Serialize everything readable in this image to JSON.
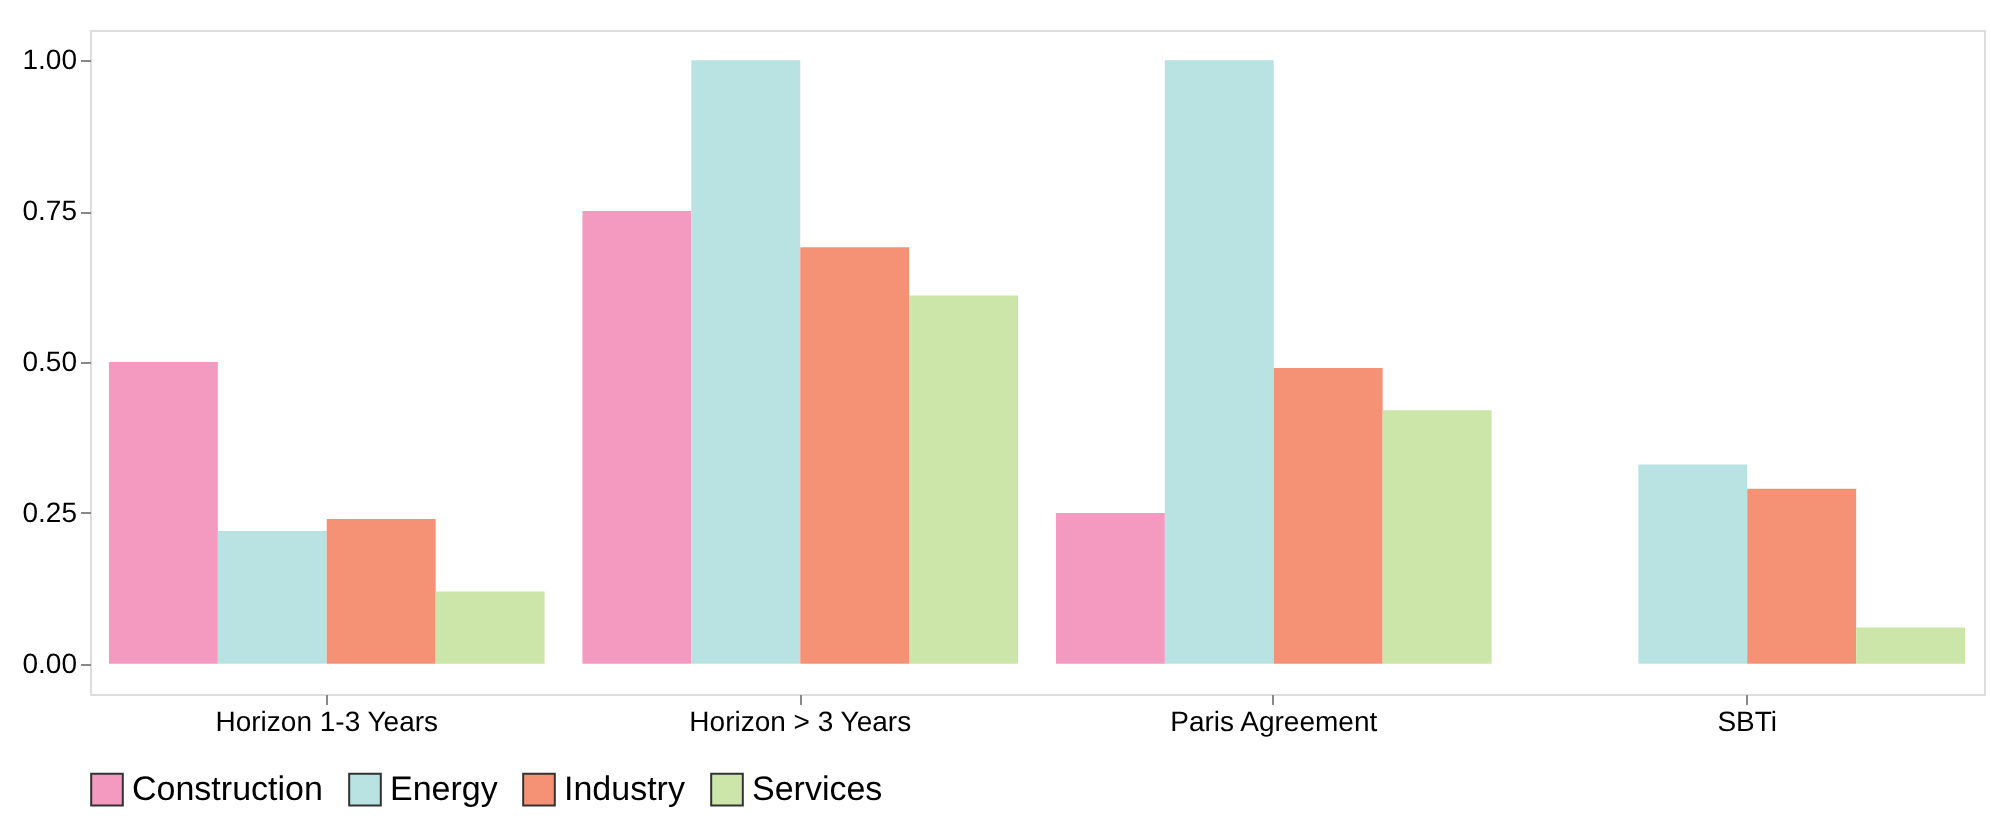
{
  "chart_data": {
    "type": "bar",
    "categories": [
      "Horizon 1-3 Years",
      "Horizon > 3 Years",
      "Paris Agreement",
      "SBTi"
    ],
    "series": [
      {
        "name": "Construction",
        "color": "#f49ac1",
        "values": [
          0.5,
          0.75,
          0.25,
          0.0
        ]
      },
      {
        "name": "Energy",
        "color": "#b9e2e2",
        "values": [
          0.22,
          1.0,
          1.0,
          0.33
        ]
      },
      {
        "name": "Industry",
        "color": "#f59275",
        "values": [
          0.24,
          0.69,
          0.49,
          0.29
        ]
      },
      {
        "name": "Services",
        "color": "#cce5a8",
        "values": [
          0.12,
          0.61,
          0.42,
          0.06
        ]
      }
    ],
    "ylim": [
      -0.05,
      1.05
    ],
    "yticks": [
      {
        "value": 0,
        "label": "0.00"
      },
      {
        "value": 0.25,
        "label": "0.25"
      },
      {
        "value": 0.5,
        "label": "0.50"
      },
      {
        "value": 0.75,
        "label": "0.75"
      },
      {
        "value": 1,
        "label": "1.00"
      }
    ],
    "grid": false,
    "legend": "bottom left"
  }
}
